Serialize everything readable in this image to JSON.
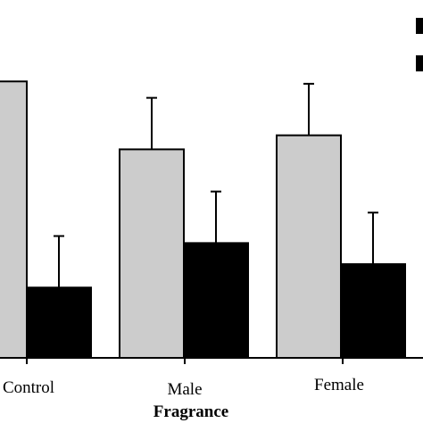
{
  "chart_data": {
    "type": "bar",
    "title": "",
    "xlabel": "Fragrance",
    "ylabel": "",
    "categories": [
      "Control",
      "Male",
      "Female"
    ],
    "series": [
      {
        "color": "#cccccc",
        "values": [
          59,
          44.5,
          47.5
        ],
        "errors": [
          null,
          11,
          11
        ]
      },
      {
        "color": "#000000",
        "values": [
          15,
          24.5,
          20
        ],
        "errors": [
          11,
          11,
          11
        ]
      }
    ],
    "ylim": [
      0,
      70
    ],
    "grid": false,
    "legend_position": "top-right"
  }
}
